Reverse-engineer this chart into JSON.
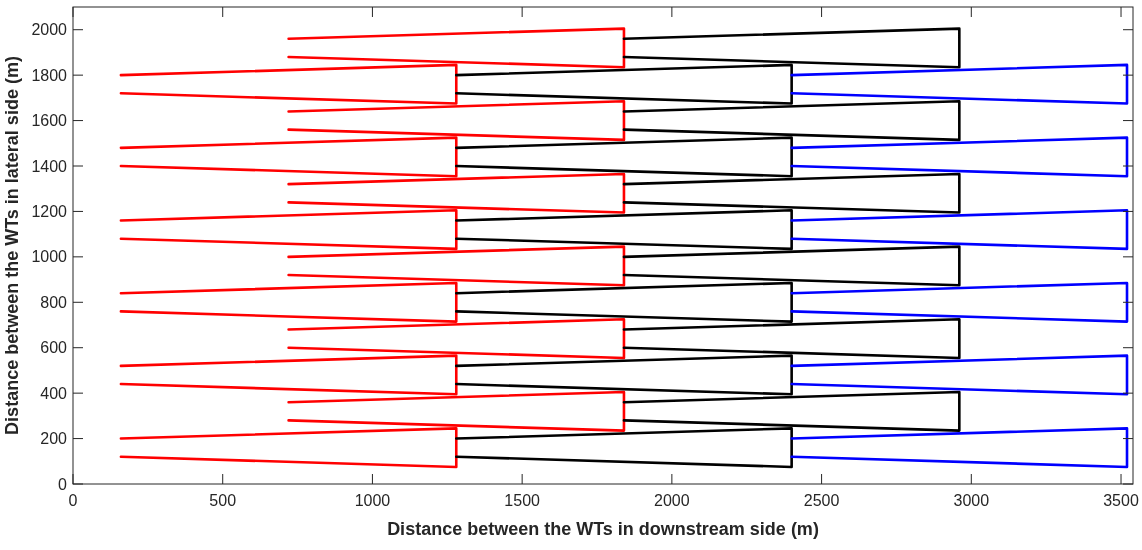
{
  "chart_data": {
    "type": "line",
    "xlabel": "Distance between the WTs in downstream side (m)",
    "ylabel": "Distance between the WTs in lateral side (m)",
    "xlim": [
      0,
      3540
    ],
    "ylim": [
      0,
      2100
    ],
    "xticks": [
      0,
      500,
      1000,
      1500,
      2000,
      2500,
      3000,
      3500
    ],
    "yticks": [
      0,
      200,
      400,
      600,
      800,
      1000,
      1200,
      1400,
      1600,
      1800,
      2000
    ],
    "grid": false,
    "marker": "none",
    "line_style": "solid",
    "series": [
      {
        "color": "#ff0000",
        "x": [
          160,
          1280,
          1280,
          160
        ],
        "values": [
          200,
          245,
          75,
          120
        ]
      },
      {
        "color": "#ff0000",
        "x": [
          160,
          1280,
          1280,
          160
        ],
        "values": [
          520,
          565,
          395,
          440
        ]
      },
      {
        "color": "#ff0000",
        "x": [
          160,
          1280,
          1280,
          160
        ],
        "values": [
          840,
          885,
          715,
          760
        ]
      },
      {
        "color": "#ff0000",
        "x": [
          160,
          1280,
          1280,
          160
        ],
        "values": [
          1160,
          1205,
          1035,
          1080
        ]
      },
      {
        "color": "#ff0000",
        "x": [
          160,
          1280,
          1280,
          160
        ],
        "values": [
          1480,
          1525,
          1355,
          1400
        ]
      },
      {
        "color": "#ff0000",
        "x": [
          160,
          1280,
          1280,
          160
        ],
        "values": [
          1800,
          1845,
          1675,
          1720
        ]
      },
      {
        "color": "#ff0000",
        "x": [
          720,
          1840,
          1840,
          720
        ],
        "values": [
          360,
          405,
          235,
          280
        ]
      },
      {
        "color": "#ff0000",
        "x": [
          720,
          1840,
          1840,
          720
        ],
        "values": [
          680,
          725,
          555,
          600
        ]
      },
      {
        "color": "#ff0000",
        "x": [
          720,
          1840,
          1840,
          720
        ],
        "values": [
          1000,
          1045,
          875,
          920
        ]
      },
      {
        "color": "#ff0000",
        "x": [
          720,
          1840,
          1840,
          720
        ],
        "values": [
          1320,
          1365,
          1195,
          1240
        ]
      },
      {
        "color": "#ff0000",
        "x": [
          720,
          1840,
          1840,
          720
        ],
        "values": [
          1640,
          1685,
          1515,
          1560
        ]
      },
      {
        "color": "#ff0000",
        "x": [
          720,
          1840,
          1840,
          720
        ],
        "values": [
          1960,
          2005,
          1835,
          1880
        ]
      },
      {
        "color": "#000000",
        "x": [
          1280,
          2400,
          2400,
          1280
        ],
        "values": [
          200,
          245,
          75,
          120
        ]
      },
      {
        "color": "#000000",
        "x": [
          1280,
          2400,
          2400,
          1280
        ],
        "values": [
          520,
          565,
          395,
          440
        ]
      },
      {
        "color": "#000000",
        "x": [
          1280,
          2400,
          2400,
          1280
        ],
        "values": [
          840,
          885,
          715,
          760
        ]
      },
      {
        "color": "#000000",
        "x": [
          1280,
          2400,
          2400,
          1280
        ],
        "values": [
          1160,
          1205,
          1035,
          1080
        ]
      },
      {
        "color": "#000000",
        "x": [
          1280,
          2400,
          2400,
          1280
        ],
        "values": [
          1480,
          1525,
          1355,
          1400
        ]
      },
      {
        "color": "#000000",
        "x": [
          1280,
          2400,
          2400,
          1280
        ],
        "values": [
          1800,
          1845,
          1675,
          1720
        ]
      },
      {
        "color": "#000000",
        "x": [
          1840,
          2960,
          2960,
          1840
        ],
        "values": [
          360,
          405,
          235,
          280
        ]
      },
      {
        "color": "#000000",
        "x": [
          1840,
          2960,
          2960,
          1840
        ],
        "values": [
          680,
          725,
          555,
          600
        ]
      },
      {
        "color": "#000000",
        "x": [
          1840,
          2960,
          2960,
          1840
        ],
        "values": [
          1000,
          1045,
          875,
          920
        ]
      },
      {
        "color": "#000000",
        "x": [
          1840,
          2960,
          2960,
          1840
        ],
        "values": [
          1320,
          1365,
          1195,
          1240
        ]
      },
      {
        "color": "#000000",
        "x": [
          1840,
          2960,
          2960,
          1840
        ],
        "values": [
          1640,
          1685,
          1515,
          1560
        ]
      },
      {
        "color": "#000000",
        "x": [
          1840,
          2960,
          2960,
          1840
        ],
        "values": [
          1960,
          2005,
          1835,
          1880
        ]
      },
      {
        "color": "#0000ff",
        "x": [
          2400,
          3520,
          3520,
          2400
        ],
        "values": [
          200,
          245,
          75,
          120
        ]
      },
      {
        "color": "#0000ff",
        "x": [
          2400,
          3520,
          3520,
          2400
        ],
        "values": [
          520,
          565,
          395,
          440
        ]
      },
      {
        "color": "#0000ff",
        "x": [
          2400,
          3520,
          3520,
          2400
        ],
        "values": [
          840,
          885,
          715,
          760
        ]
      },
      {
        "color": "#0000ff",
        "x": [
          2400,
          3520,
          3520,
          2400
        ],
        "values": [
          1160,
          1205,
          1035,
          1080
        ]
      },
      {
        "color": "#0000ff",
        "x": [
          2400,
          3520,
          3520,
          2400
        ],
        "values": [
          1480,
          1525,
          1355,
          1400
        ]
      },
      {
        "color": "#0000ff",
        "x": [
          2400,
          3520,
          3520,
          2400
        ],
        "values": [
          1800,
          1845,
          1675,
          1720
        ]
      }
    ]
  }
}
